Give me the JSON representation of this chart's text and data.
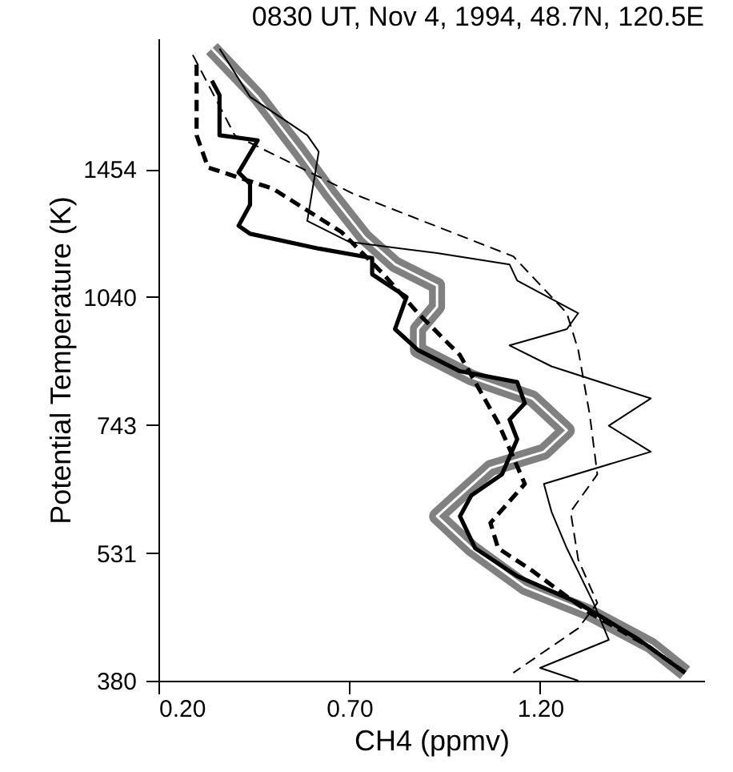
{
  "chart_data": {
    "type": "line",
    "title": "0830 UT, Nov 4, 1994, 48.7N, 120.5E",
    "xlabel": "CH4 (ppmv)",
    "ylabel": "Potential Temperature (K)",
    "log": "y",
    "marker": "none",
    "xlim": [
      0.2,
      1.63
    ],
    "ylim": [
      380,
      2050
    ],
    "xticks": [
      {
        "value": 0.2,
        "label": "0.20"
      },
      {
        "value": 0.7,
        "label": "0.70"
      },
      {
        "value": 1.2,
        "label": "1.20"
      }
    ],
    "yticks": [
      380,
      531,
      743,
      1040,
      1454
    ],
    "series": [
      {
        "color": "#808080",
        "line_style": "solid",
        "x": [
          0.34,
          0.46,
          0.57,
          0.65,
          0.74,
          0.82,
          0.93,
          0.93,
          0.88,
          0.88,
          1.02,
          1.18,
          1.27,
          1.21,
          1.07,
          0.99,
          0.93,
          1.02,
          1.16,
          1.33,
          1.49,
          1.58
        ],
        "values": [
          1996,
          1759,
          1523,
          1364,
          1217,
          1133,
          1072,
          1014,
          956,
          905,
          842,
          797,
          733,
          693,
          664,
          618,
          585,
          538,
          486,
          454,
          417,
          388
        ]
      },
      {
        "color": "#000000",
        "line_style": "solid",
        "x": [
          0.34,
          0.36,
          0.36,
          0.46,
          0.41,
          0.44,
          0.44,
          0.41,
          0.44,
          0.62,
          0.76,
          0.76,
          0.85,
          0.82,
          0.88,
          0.99,
          1.14,
          1.16,
          1.12,
          1.14,
          1.1,
          1.02,
          0.99,
          1.03,
          1.14,
          1.3,
          1.46,
          1.58
        ],
        "values": [
          1835,
          1767,
          1590,
          1569,
          1442,
          1400,
          1325,
          1254,
          1228,
          1181,
          1152,
          1104,
          1040,
          956,
          905,
          856,
          832,
          787,
          754,
          716,
          653,
          618,
          585,
          538,
          500,
          466,
          423,
          388
        ]
      },
      {
        "color": "#000000",
        "line_style": "dashed",
        "x": [
          0.3,
          0.3,
          0.33,
          0.5,
          0.68,
          0.79,
          0.88,
          0.99,
          1.09,
          1.16,
          1.07,
          1.09,
          1.18,
          1.27,
          1.33,
          1.48,
          1.58
        ],
        "values": [
          1914,
          1590,
          1461,
          1382,
          1233,
          1104,
          997,
          893,
          748,
          637,
          575,
          538,
          507,
          474,
          454,
          417,
          388
        ]
      },
      {
        "color": "#000000",
        "line_style": "solid",
        "x": [
          0.36,
          0.44,
          0.59,
          0.62,
          0.59,
          0.7,
          0.93,
          1.12,
          1.14,
          1.3,
          1.27,
          1.12,
          1.23,
          1.49,
          1.38,
          1.49,
          1.21,
          1.23,
          1.27,
          1.34,
          1.38,
          1.2,
          1.3
        ],
        "values": [
          1996,
          1759,
          1590,
          1523,
          1270,
          1202,
          1167,
          1133,
          1086,
          997,
          956,
          916,
          867,
          797,
          742,
          693,
          637,
          592,
          538,
          466,
          423,
          393,
          380
        ]
      },
      {
        "color": "#000000",
        "line_style": "dashed",
        "x": [
          0.29,
          0.4,
          0.71,
          1.13,
          1.27,
          1.3,
          1.33,
          1.35,
          1.28,
          1.3,
          1.35,
          1.3,
          1.13
        ],
        "values": [
          1963,
          1590,
          1364,
          1157,
          997,
          905,
          764,
          653,
          592,
          522,
          466,
          436,
          388
        ]
      }
    ]
  }
}
